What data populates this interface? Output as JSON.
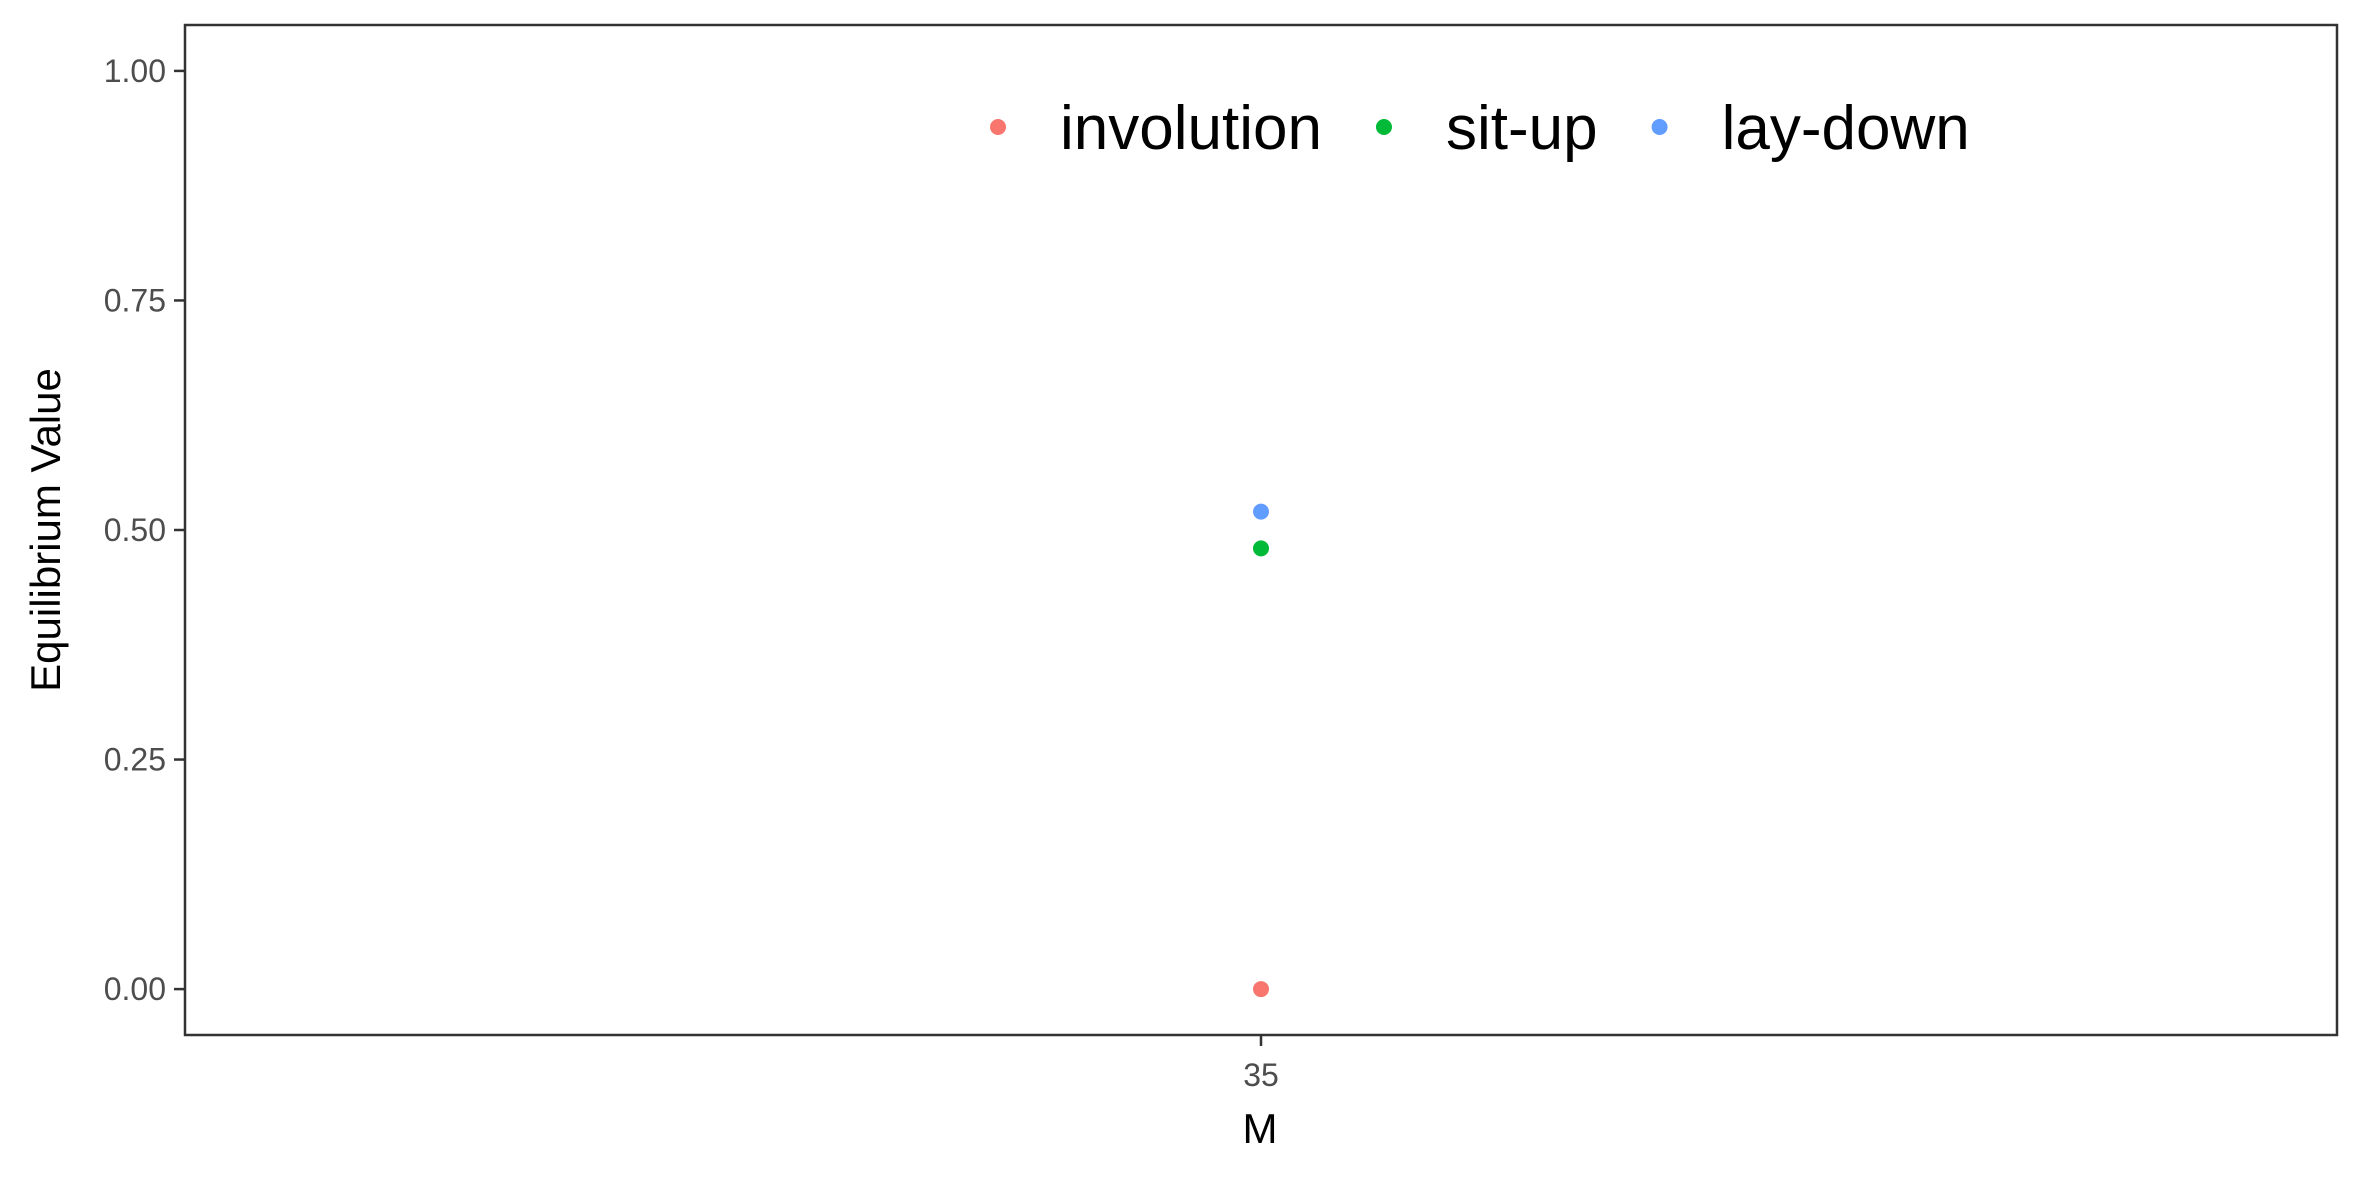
{
  "chart_data": {
    "type": "scatter",
    "title": "",
    "xlabel": "M",
    "ylabel": "Equilibrium Value",
    "x_type": "categorical",
    "categories": [
      "35"
    ],
    "ylim": [
      -0.05,
      1.05
    ],
    "y_ticks": [
      0.0,
      0.25,
      0.5,
      0.75,
      1.0
    ],
    "y_tick_labels": [
      "0.00",
      "0.25",
      "0.50",
      "0.75",
      "1.00"
    ],
    "grid": false,
    "legend_position": "top-right, inside",
    "series": [
      {
        "name": "involution",
        "color": "#F8766D",
        "points": [
          {
            "x": "35",
            "y": 0.0
          }
        ]
      },
      {
        "name": "sit-up",
        "color": "#00BA38",
        "points": [
          {
            "x": "35",
            "y": 0.48
          }
        ]
      },
      {
        "name": "lay-down",
        "color": "#619CFF",
        "points": [
          {
            "x": "35",
            "y": 0.52
          }
        ]
      }
    ]
  }
}
